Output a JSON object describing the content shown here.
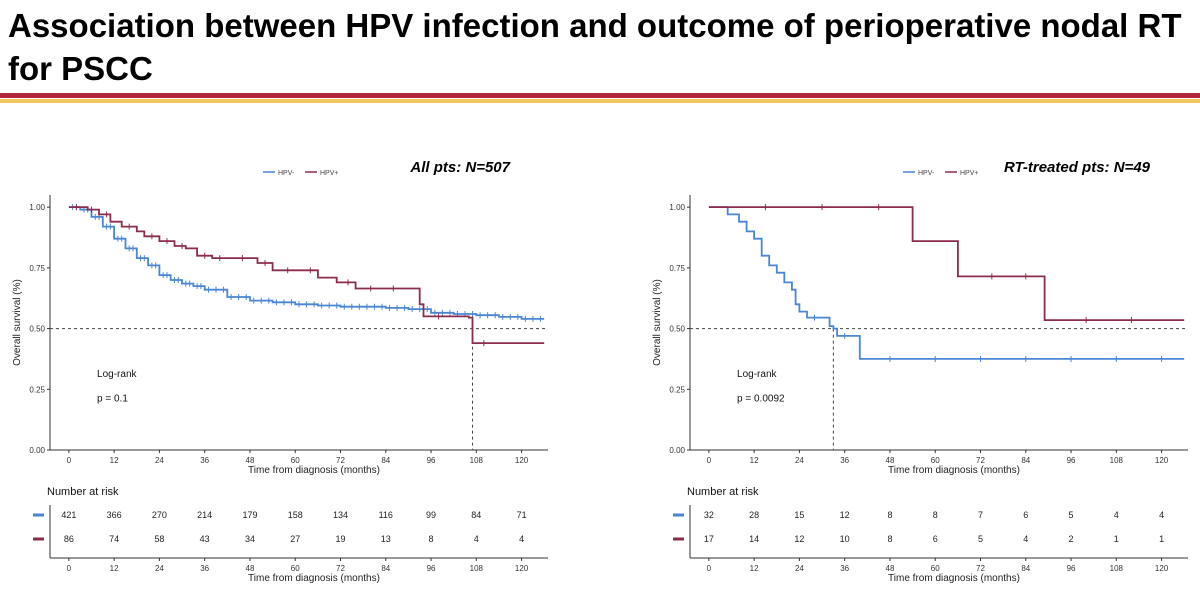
{
  "slide": {
    "title": "Association between HPV infection and outcome of perioperative nodal RT for PSCC"
  },
  "colors": {
    "title_rule": "#b3283a",
    "title_rule_accent": "#f2c85c",
    "hpv_neg": "#4a86d4",
    "hpv_pos": "#8b2c4e"
  },
  "chart_data": [
    {
      "type": "line",
      "heading": "All pts: N=507",
      "legend": [
        "HPV-",
        "HPV+"
      ],
      "xlabel": "Time from diagnosis (months)",
      "ylabel": "Overall survival (%)",
      "xlim": [
        -5,
        127
      ],
      "ylim": [
        0,
        1.05
      ],
      "x_ticks": [
        0,
        12,
        24,
        36,
        48,
        60,
        72,
        84,
        96,
        108,
        120
      ],
      "y_ticks": [
        "0.00",
        "0.25",
        "0.50",
        "0.75",
        "1.00"
      ],
      "reference_line": 0.5,
      "median_marker_x": 107,
      "test_label": "Log-rank",
      "p_value": "p = 0.1",
      "series": [
        {
          "name": "HPV-",
          "color": "#4a86d4",
          "points": [
            [
              0,
              1.0
            ],
            [
              3,
              0.99
            ],
            [
              6,
              0.96
            ],
            [
              9,
              0.92
            ],
            [
              12,
              0.87
            ],
            [
              15,
              0.83
            ],
            [
              18,
              0.79
            ],
            [
              21,
              0.76
            ],
            [
              24,
              0.72
            ],
            [
              27,
              0.7
            ],
            [
              30,
              0.685
            ],
            [
              33,
              0.675
            ],
            [
              36,
              0.66
            ],
            [
              42,
              0.63
            ],
            [
              48,
              0.615
            ],
            [
              54,
              0.608
            ],
            [
              60,
              0.6
            ],
            [
              66,
              0.595
            ],
            [
              72,
              0.59
            ],
            [
              84,
              0.585
            ],
            [
              90,
              0.58
            ],
            [
              96,
              0.565
            ],
            [
              102,
              0.56
            ],
            [
              108,
              0.555
            ],
            [
              114,
              0.548
            ],
            [
              120,
              0.54
            ],
            [
              126,
              0.54
            ]
          ],
          "censor_marks": [
            1,
            2,
            4,
            5,
            7,
            8,
            10,
            11,
            13,
            14,
            16,
            17,
            19,
            20,
            22,
            23,
            25,
            26,
            28,
            29,
            31,
            32,
            34,
            35,
            37,
            39,
            41,
            43,
            45,
            47,
            49,
            51,
            53,
            55,
            57,
            59,
            61,
            63,
            65,
            67,
            69,
            71,
            73,
            75,
            77,
            79,
            81,
            83,
            85,
            87,
            89,
            91,
            93,
            95,
            97,
            99,
            101,
            103,
            105,
            107,
            109,
            111,
            113,
            115,
            117,
            119,
            121,
            123,
            125
          ]
        },
        {
          "name": "HPV+",
          "color": "#8b2c4e",
          "points": [
            [
              0,
              1.0
            ],
            [
              5,
              0.99
            ],
            [
              8,
              0.97
            ],
            [
              11,
              0.94
            ],
            [
              14,
              0.92
            ],
            [
              18,
              0.9
            ],
            [
              20,
              0.88
            ],
            [
              24,
              0.86
            ],
            [
              28,
              0.84
            ],
            [
              31,
              0.83
            ],
            [
              34,
              0.8
            ],
            [
              38,
              0.79
            ],
            [
              44,
              0.79
            ],
            [
              50,
              0.77
            ],
            [
              54,
              0.74
            ],
            [
              62,
              0.74
            ],
            [
              66,
              0.71
            ],
            [
              71,
              0.69
            ],
            [
              76,
              0.665
            ],
            [
              87,
              0.665
            ],
            [
              93,
              0.6
            ],
            [
              94,
              0.55
            ],
            [
              100,
              0.55
            ],
            [
              106,
              0.545
            ],
            [
              107,
              0.44
            ],
            [
              126,
              0.44
            ]
          ],
          "censor_marks": [
            2,
            6,
            10,
            16,
            22,
            26,
            30,
            36,
            40,
            46,
            52,
            58,
            64,
            74,
            80,
            86,
            98,
            110
          ]
        }
      ],
      "risk_table": {
        "title": "Number at risk",
        "x": [
          0,
          12,
          24,
          36,
          48,
          60,
          72,
          84,
          96,
          108,
          120
        ],
        "rows": [
          {
            "group": "HPV-",
            "color": "#4a86d4",
            "values": [
              "421",
              "366",
              "270",
              "214",
              "179",
              "158",
              "134",
              "116",
              "99",
              "84",
              "71"
            ]
          },
          {
            "group": "HPV+",
            "color": "#8b2c4e",
            "values": [
              "86",
              "74",
              "58",
              "43",
              "34",
              "27",
              "19",
              "13",
              "8",
              "4",
              "4"
            ]
          }
        ],
        "xlabel": "Time from diagnosis (months)"
      }
    },
    {
      "type": "line",
      "heading": "RT-treated pts: N=49",
      "legend": [
        "HPV-",
        "HPV+"
      ],
      "xlabel": "Time from diagnosis (months)",
      "ylabel": "Overall survival (%)",
      "xlim": [
        -5,
        127
      ],
      "ylim": [
        0,
        1.05
      ],
      "x_ticks": [
        0,
        12,
        24,
        36,
        48,
        60,
        72,
        84,
        96,
        108,
        120
      ],
      "y_ticks": [
        "0.00",
        "0.25",
        "0.50",
        "0.75",
        "1.00"
      ],
      "reference_line": 0.5,
      "median_marker_x": 33,
      "test_label": "Log-rank",
      "p_value": "p = 0.0092",
      "series": [
        {
          "name": "HPV-",
          "color": "#4a86d4",
          "points": [
            [
              0,
              1.0
            ],
            [
              5,
              0.97
            ],
            [
              8,
              0.94
            ],
            [
              10,
              0.9
            ],
            [
              12,
              0.87
            ],
            [
              14,
              0.8
            ],
            [
              16,
              0.76
            ],
            [
              18,
              0.73
            ],
            [
              20,
              0.69
            ],
            [
              22,
              0.66
            ],
            [
              23,
              0.6
            ],
            [
              24,
              0.57
            ],
            [
              26,
              0.545
            ],
            [
              32,
              0.51
            ],
            [
              33,
              0.5
            ],
            [
              34,
              0.47
            ],
            [
              40,
              0.375
            ],
            [
              126,
              0.375
            ]
          ],
          "censor_marks": [
            28,
            36,
            48,
            60,
            72,
            84,
            96,
            108,
            120
          ]
        },
        {
          "name": "HPV+",
          "color": "#8b2c4e",
          "points": [
            [
              0,
              1.0
            ],
            [
              54,
              1.0
            ],
            [
              54,
              0.86
            ],
            [
              66,
              0.86
            ],
            [
              66,
              0.715
            ],
            [
              89,
              0.715
            ],
            [
              89,
              0.535
            ],
            [
              126,
              0.535
            ]
          ],
          "censor_marks": [
            15,
            30,
            45,
            75,
            84,
            100,
            112
          ]
        }
      ],
      "risk_table": {
        "title": "Number at risk",
        "x": [
          0,
          12,
          24,
          36,
          48,
          60,
          72,
          84,
          96,
          108,
          120
        ],
        "rows": [
          {
            "group": "HPV-",
            "color": "#4a86d4",
            "values": [
              "32",
              "28",
              "15",
              "12",
              "8",
              "8",
              "7",
              "6",
              "5",
              "4",
              "4"
            ]
          },
          {
            "group": "HPV+",
            "color": "#8b2c4e",
            "values": [
              "17",
              "14",
              "12",
              "10",
              "8",
              "6",
              "5",
              "4",
              "2",
              "1",
              "1"
            ]
          }
        ],
        "xlabel": "Time from diagnosis (months)"
      }
    }
  ]
}
